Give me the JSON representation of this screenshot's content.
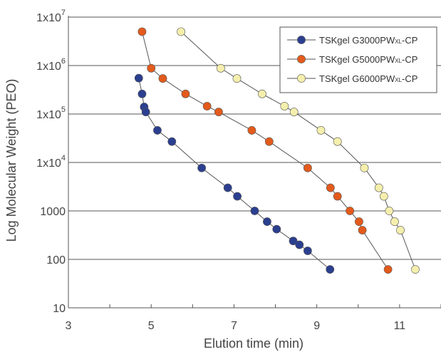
{
  "chart_data": {
    "type": "scatter",
    "title": "",
    "xlabel": "Elution time (min)",
    "ylabel": "Log Molecular Weight (PEO)",
    "xlim": [
      3,
      12
    ],
    "ylim": [
      10,
      10000000
    ],
    "yscale": "log",
    "grid": "horizontal",
    "legend_position": "top-right",
    "x_ticks": [
      3,
      5,
      7,
      9,
      11
    ],
    "y_ticks": [
      {
        "value": 10000000,
        "base": "1x10",
        "exp": "7"
      },
      {
        "value": 1000000,
        "base": "1x10",
        "exp": "6"
      },
      {
        "value": 100000,
        "base": "1x10",
        "exp": "5"
      },
      {
        "value": 10000,
        "base": "1x10",
        "exp": "4"
      },
      {
        "value": 1000,
        "base": "1000",
        "exp": ""
      },
      {
        "value": 100,
        "base": "100",
        "exp": ""
      },
      {
        "value": 10,
        "base": "10",
        "exp": ""
      }
    ],
    "series": [
      {
        "name": "TSKgel G3000PWXL-CP",
        "name_main": "TSKgel G3000PW",
        "name_sub": "XL",
        "name_tail": "-CP",
        "color": "#2b3f8f",
        "points": [
          [
            4.7,
            550000
          ],
          [
            4.78,
            260000
          ],
          [
            4.83,
            140000
          ],
          [
            4.87,
            110000
          ],
          [
            5.15,
            46000
          ],
          [
            5.5,
            27000
          ],
          [
            6.22,
            7700
          ],
          [
            6.85,
            3000
          ],
          [
            7.08,
            2000
          ],
          [
            7.5,
            1000
          ],
          [
            7.8,
            600
          ],
          [
            8.03,
            420
          ],
          [
            8.43,
            240
          ],
          [
            8.58,
            200
          ],
          [
            8.78,
            150
          ],
          [
            9.32,
            62
          ]
        ]
      },
      {
        "name": "TSKgel G5000PWXL-CP",
        "name_main": "TSKgel G5000PW",
        "name_sub": "XL",
        "name_tail": "-CP",
        "color": "#e35a1c",
        "points": [
          [
            4.78,
            5000000
          ],
          [
            5.0,
            880000
          ],
          [
            5.28,
            540000
          ],
          [
            5.83,
            260000
          ],
          [
            6.35,
            145000
          ],
          [
            6.63,
            110000
          ],
          [
            7.43,
            46000
          ],
          [
            7.85,
            27000
          ],
          [
            8.78,
            7700
          ],
          [
            9.33,
            3000
          ],
          [
            9.5,
            2000
          ],
          [
            9.8,
            1000
          ],
          [
            10.02,
            600
          ],
          [
            10.1,
            400
          ],
          [
            10.72,
            62
          ]
        ]
      },
      {
        "name": "TSKgel G6000PWXL-CP",
        "name_main": "TSKgel G6000PW",
        "name_sub": "XL",
        "name_tail": "-CP",
        "color": "#f5efad",
        "points": [
          [
            5.72,
            5000000
          ],
          [
            6.68,
            880000
          ],
          [
            7.07,
            540000
          ],
          [
            7.68,
            260000
          ],
          [
            8.22,
            145000
          ],
          [
            8.45,
            110000
          ],
          [
            9.1,
            46000
          ],
          [
            9.5,
            27000
          ],
          [
            10.15,
            7700
          ],
          [
            10.5,
            3000
          ],
          [
            10.62,
            2000
          ],
          [
            10.75,
            1000
          ],
          [
            10.88,
            600
          ],
          [
            11.02,
            400
          ],
          [
            11.38,
            62
          ]
        ]
      }
    ]
  }
}
